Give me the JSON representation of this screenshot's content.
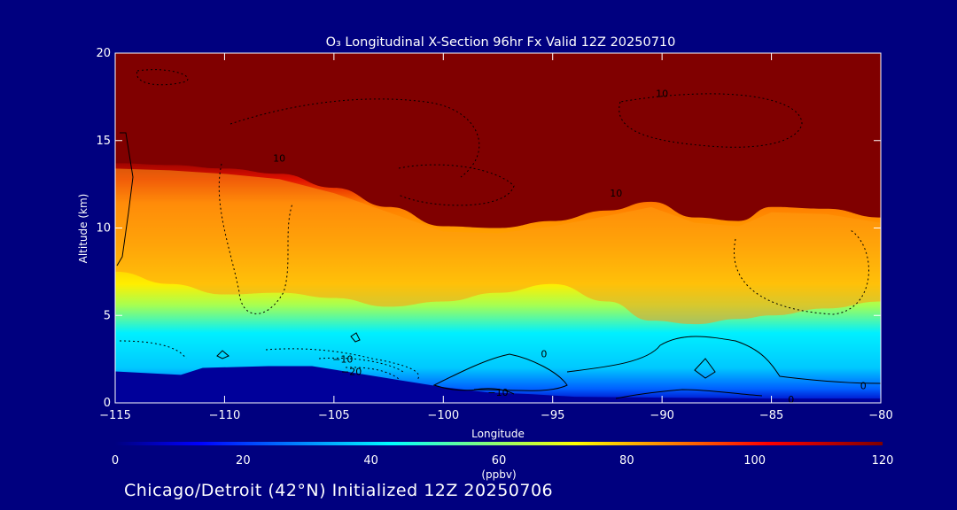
{
  "chart_data": {
    "type": "heatmap",
    "title": "O₃ Longitudinal X-Section 96hr  Fx Valid 12Z 20250710",
    "xlabel": "Longitude",
    "ylabel": "Altitude (km)",
    "xlim": [
      -115,
      -80
    ],
    "ylim": [
      0,
      20
    ],
    "x_ticks": [
      -115,
      -110,
      -105,
      -100,
      -95,
      -90,
      -85,
      -80
    ],
    "x_tick_labels": [
      "−115",
      "−110",
      "−105",
      "−100",
      "−95",
      "−90",
      "−85",
      "−80"
    ],
    "y_ticks": [
      0,
      5,
      10,
      15,
      20
    ],
    "y_tick_labels": [
      "0",
      "5",
      "10",
      "15",
      "20"
    ],
    "colorbar": {
      "label": "(ppbv)",
      "range": [
        0,
        120
      ],
      "ticks": [
        0,
        20,
        40,
        60,
        80,
        100,
        120
      ],
      "tick_labels": [
        "0",
        "20",
        "40",
        "60",
        "80",
        "100",
        "120"
      ]
    },
    "tropopause_km": [
      [
        -115,
        13.7
      ],
      [
        -112.5,
        13.6
      ],
      [
        -110,
        13.4
      ],
      [
        -107.5,
        13.1
      ],
      [
        -105,
        12.3
      ],
      [
        -102.5,
        11.2
      ],
      [
        -100,
        10.1
      ],
      [
        -97.5,
        10.0
      ],
      [
        -95,
        10.4
      ],
      [
        -92.5,
        11.0
      ],
      [
        -90.5,
        11.5
      ],
      [
        -88.5,
        10.6
      ],
      [
        -86.5,
        10.4
      ],
      [
        -85,
        11.2
      ],
      [
        -82.5,
        11.1
      ],
      [
        -80,
        10.6
      ]
    ],
    "midlayer_km": [
      [
        -115,
        7.5
      ],
      [
        -112.5,
        6.8
      ],
      [
        -110,
        6.2
      ],
      [
        -107.5,
        6.3
      ],
      [
        -105,
        6.0
      ],
      [
        -102.5,
        5.5
      ],
      [
        -100,
        5.8
      ],
      [
        -97.5,
        6.3
      ],
      [
        -95,
        6.8
      ],
      [
        -92.5,
        5.8
      ],
      [
        -90.5,
        4.7
      ],
      [
        -88.5,
        4.5
      ],
      [
        -86.5,
        4.8
      ],
      [
        -85,
        5.0
      ],
      [
        -82.5,
        5.4
      ],
      [
        -80,
        5.8
      ]
    ],
    "surface_km": [
      [
        -115,
        1.8
      ],
      [
        -112,
        1.6
      ],
      [
        -111,
        2.0
      ],
      [
        -108,
        2.1
      ],
      [
        -106,
        2.1
      ],
      [
        -104,
        1.7
      ],
      [
        -102,
        1.3
      ],
      [
        -100,
        0.9
      ],
      [
        -98,
        0.6
      ],
      [
        -96,
        0.5
      ],
      [
        -94,
        0.35
      ],
      [
        -90,
        0.3
      ],
      [
        -85,
        0.25
      ],
      [
        -80,
        0.25
      ]
    ],
    "contour_labels": [
      {
        "text": "10",
        "x": -90,
        "y": 17.7
      },
      {
        "text": "10",
        "x": -107.5,
        "y": 14.0
      },
      {
        "text": "10",
        "x": -92.1,
        "y": 12.0
      },
      {
        "text": "0",
        "x": -95.4,
        "y": 2.8
      },
      {
        "text": "−10",
        "x": -104.6,
        "y": 2.5
      },
      {
        "text": "−20",
        "x": -104.2,
        "y": 1.8
      },
      {
        "text": "−10",
        "x": -97.5,
        "y": 0.6
      },
      {
        "text": "0",
        "x": -80.8,
        "y": 1.0
      },
      {
        "text": "0",
        "x": -84.1,
        "y": 0.2
      }
    ]
  },
  "footer_text": "Chicago/Detroit (42°N) Initialized 12Z 20250706"
}
